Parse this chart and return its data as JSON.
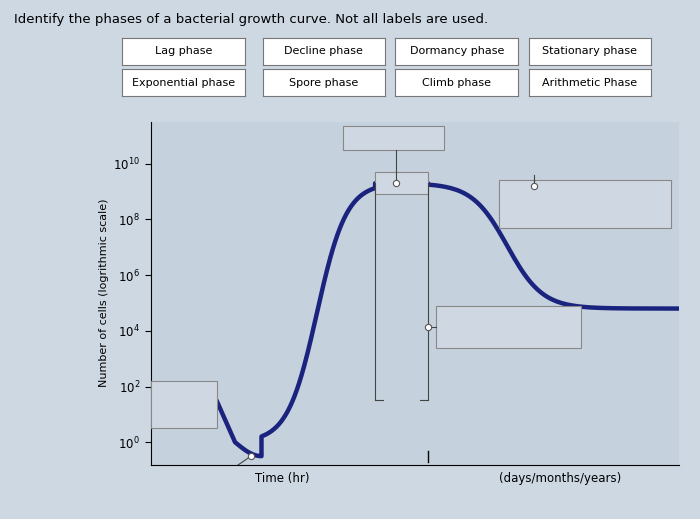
{
  "title": "Identify the phases of a bacterial growth curve. Not all labels are used.",
  "ylabel": "Number of cells (logrithmic scale)",
  "xlabel_left": "Time (hr)",
  "xlabel_right": "(days/months/years)",
  "button_labels_row1": [
    "Lag phase",
    "Decline phase",
    "Dormancy phase",
    "Stationary phase"
  ],
  "button_labels_row2": [
    "Exponential phase",
    "Spore phase",
    "Climb phase",
    "Arithmetic Phase"
  ],
  "bg_color": "#cdd8e3",
  "plot_bg_color": "#c5d1dd",
  "curve_color": "#1a237e",
  "curve_linewidth": 3.2,
  "box_facecolor": "#cfd8e2",
  "box_edgecolor": "#888888",
  "note": "y-axis is linear 0-10 but labeled as 10^0 through 10^10 (evenly spaced)"
}
